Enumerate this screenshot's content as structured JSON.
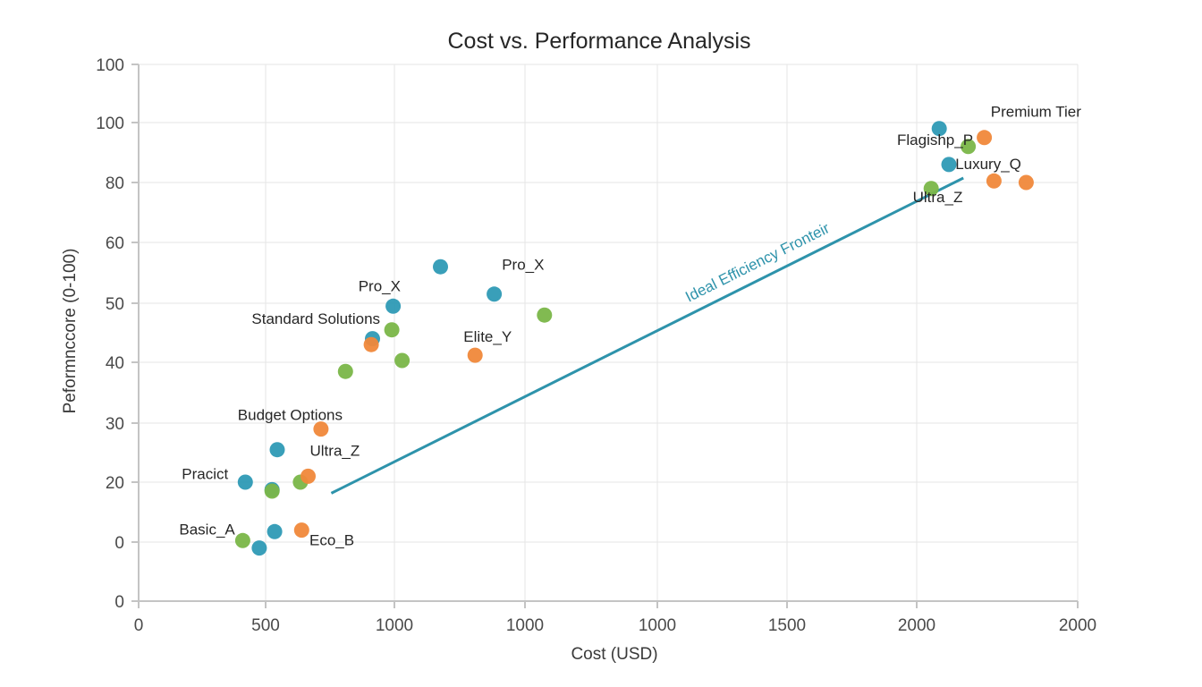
{
  "chart_data": {
    "type": "scatter",
    "title": "Cost vs. Performance Analysis",
    "xlabel": "Cost (USD)",
    "ylabel": "Peformnccore (0-100)",
    "x_ticks": [
      "0",
      "500",
      "1000",
      "1000",
      "1000",
      "1500",
      "2000",
      "2000"
    ],
    "y_ticks": [
      "0",
      "0",
      "20",
      "30",
      "40",
      "50",
      "60",
      "80",
      "100",
      "100"
    ],
    "grid": true,
    "colors": {
      "blue": "#2E9AB5",
      "green": "#7AB648",
      "orange": "#F0883A",
      "frontier": "#2E93AB"
    },
    "series": [
      {
        "name": "blue",
        "color": "#2E9AB5",
        "points": [
          {
            "x": 420,
            "y": 20
          },
          {
            "x": 545,
            "y": 25.5
          },
          {
            "x": 525,
            "y": 17.5
          },
          {
            "x": 535,
            "y": 3.5
          },
          {
            "x": 475,
            "y": -1
          },
          {
            "x": 995,
            "y": 49.5
          },
          {
            "x": 1060,
            "y": 56
          },
          {
            "x": 1130,
            "y": 51.5
          },
          {
            "x": 915,
            "y": 44
          },
          {
            "x": 2070,
            "y": 98
          },
          {
            "x": 2100,
            "y": 86
          }
        ]
      },
      {
        "name": "green",
        "color": "#7AB648",
        "points": [
          {
            "x": 410,
            "y": 0.5
          },
          {
            "x": 525,
            "y": 17
          },
          {
            "x": 635,
            "y": 20
          },
          {
            "x": 810,
            "y": 38.5
          },
          {
            "x": 990,
            "y": 45.5
          },
          {
            "x": 1010,
            "y": 40.3
          },
          {
            "x": 1195,
            "y": 48
          },
          {
            "x": 2160,
            "y": 92
          },
          {
            "x": 2045,
            "y": 78
          }
        ]
      },
      {
        "name": "orange",
        "color": "#F0883A",
        "points": [
          {
            "x": 665,
            "y": 21
          },
          {
            "x": 640,
            "y": 4
          },
          {
            "x": 715,
            "y": 29
          },
          {
            "x": 910,
            "y": 43
          },
          {
            "x": 1105,
            "y": 41.2
          },
          {
            "x": 2210,
            "y": 95
          },
          {
            "x": 2240,
            "y": 80.5
          },
          {
            "x": 2340,
            "y": 80
          }
        ]
      }
    ],
    "frontier": {
      "label": "Ideal Efficiency Fronteir",
      "from": {
        "x": 755,
        "y": 16.3
      },
      "to": {
        "x": 2145,
        "y": 81.5
      }
    },
    "annotations": [
      {
        "text": "Premium Tier",
        "x": 2230,
        "y": 101,
        "anchor": "start"
      },
      {
        "text": "Flagishp_P",
        "x": 1950,
        "y": 92.5,
        "anchor": "start"
      },
      {
        "text": "Luxury_Q",
        "x": 2120,
        "y": 84.5,
        "anchor": "start"
      },
      {
        "text": "Ultra_Z",
        "x": 1990,
        "y": 73.5,
        "anchor": "start"
      },
      {
        "text": "Pro_X",
        "x": 1140,
        "y": 55.5,
        "anchor": "start"
      },
      {
        "text": "Pro_X",
        "x": 860,
        "y": 52,
        "anchor": "start"
      },
      {
        "text": "Standard Solutions",
        "x": 445,
        "y": 46.5,
        "anchor": "start"
      },
      {
        "text": "Elite_Y",
        "x": 1090,
        "y": 43.5,
        "anchor": "start"
      },
      {
        "text": "Budget Options",
        "x": 390,
        "y": 30.5,
        "anchor": "start"
      },
      {
        "text": "Ultra_Z",
        "x": 672,
        "y": 24.5,
        "anchor": "start"
      },
      {
        "text": "Pracict",
        "x": 170,
        "y": 20.5,
        "anchor": "start"
      },
      {
        "text": "Basic_A",
        "x": 160,
        "y": 2.5,
        "anchor": "start"
      },
      {
        "text": "Eco_B",
        "x": 670,
        "y": -0.5,
        "anchor": "start"
      }
    ]
  }
}
